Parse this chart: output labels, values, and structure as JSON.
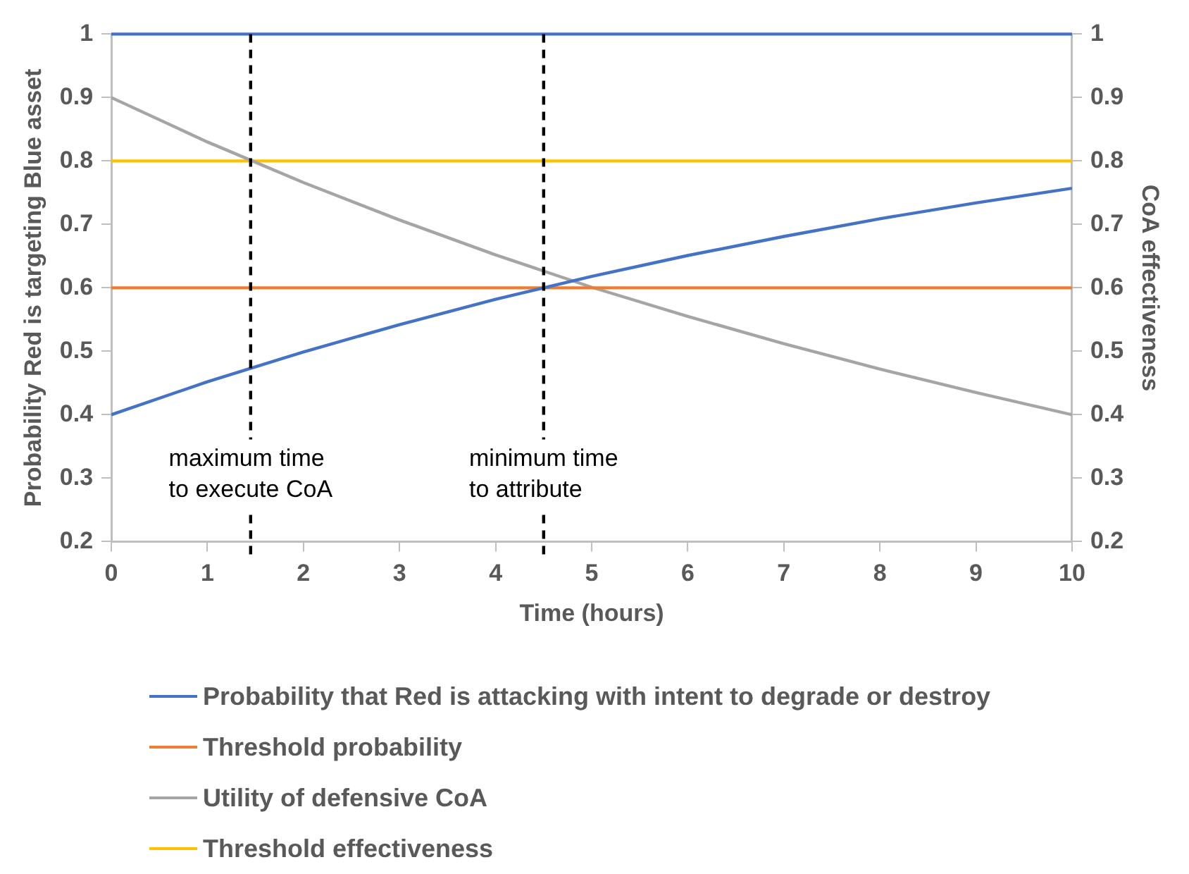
{
  "chart_data": {
    "type": "line",
    "xlabel": "Time (hours)",
    "ylabel": "Probability Red is targeting Blue asset",
    "y2label": "CoA effectiveness",
    "x": [
      0,
      1,
      2,
      3,
      4,
      5,
      6,
      7,
      8,
      9,
      10
    ],
    "series": [
      {
        "name": "Probability that Red is attacking with intent to degrade or destroy",
        "color": "#4472c4",
        "values": [
          0.4,
          0.452,
          0.499,
          0.542,
          0.582,
          0.618,
          0.651,
          0.681,
          0.709,
          0.734,
          0.757
        ]
      },
      {
        "name": "Threshold probability",
        "color": "#ed7d31",
        "values": [
          0.6,
          0.6,
          0.6,
          0.6,
          0.6,
          0.6,
          0.6,
          0.6,
          0.6,
          0.6,
          0.6
        ]
      },
      {
        "name": "Utility of defensive CoA",
        "color": "#a5a5a5",
        "values": [
          0.9,
          0.83,
          0.766,
          0.707,
          0.652,
          0.601,
          0.555,
          0.512,
          0.472,
          0.435,
          0.4
        ]
      },
      {
        "name": "Threshold effectiveness",
        "color": "#ffc000",
        "values": [
          0.8,
          0.8,
          0.8,
          0.8,
          0.8,
          0.8,
          0.8,
          0.8,
          0.8,
          0.8,
          0.8
        ]
      }
    ],
    "xlim": [
      0,
      10
    ],
    "xticks": [
      0,
      1,
      2,
      3,
      4,
      5,
      6,
      7,
      8,
      9,
      10
    ],
    "ylim": [
      0.2,
      1
    ],
    "yticks": [
      0.2,
      0.3,
      0.4,
      0.5,
      0.6,
      0.7,
      0.8,
      0.9,
      1
    ],
    "y2lim": [
      0.2,
      1
    ],
    "y2ticks": [
      0.2,
      0.3,
      0.4,
      0.5,
      0.6,
      0.7,
      0.8,
      0.9,
      1
    ],
    "ref_lines": [
      {
        "axis": "y",
        "value": 1,
        "color": "#4472c4",
        "line_style": "solid"
      },
      {
        "axis": "x",
        "value": 1.45,
        "label": "maximum time to execute CoA",
        "color": "#000000",
        "line_style": "dashed"
      },
      {
        "axis": "x",
        "value": 4.5,
        "label": "minimum time to attribute",
        "color": "#000000",
        "line_style": "dashed"
      }
    ],
    "grid": false,
    "legend": "bottom",
    "marker": "none",
    "line_style": "solid"
  }
}
